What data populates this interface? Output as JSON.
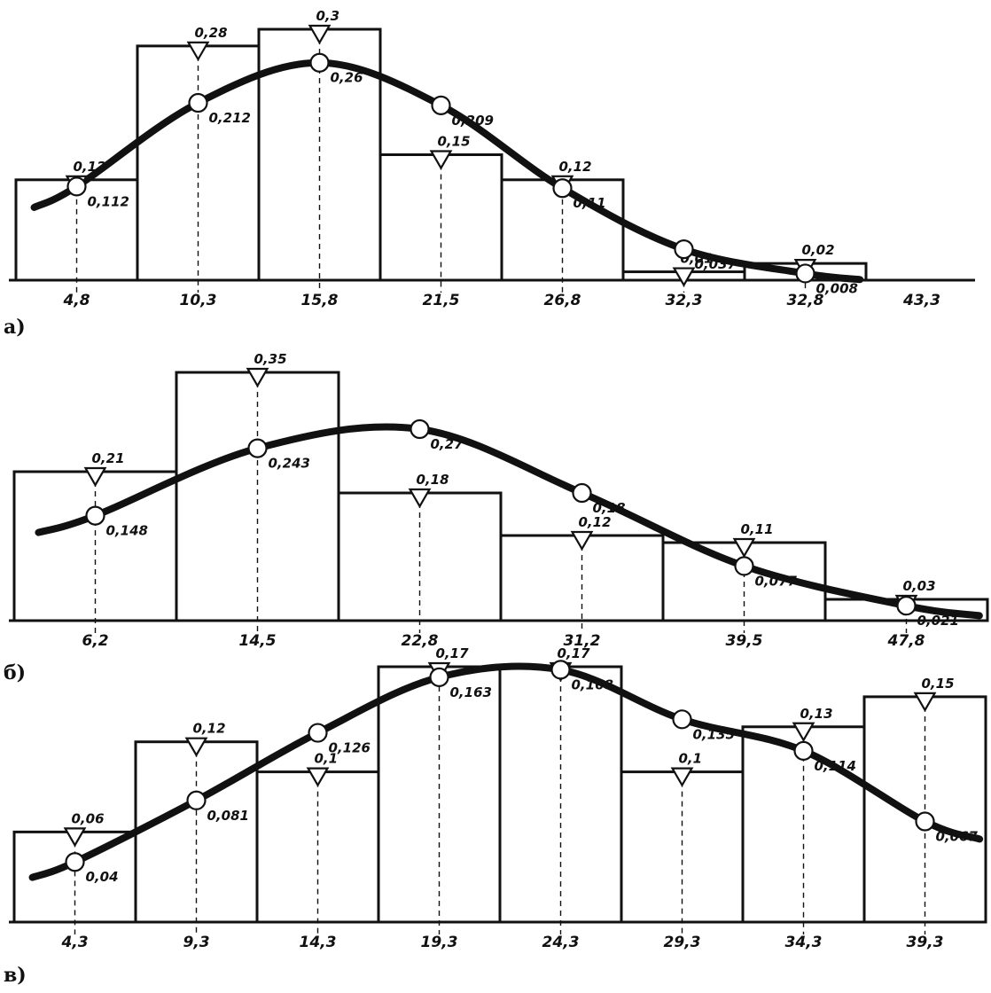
{
  "chart_data": [
    {
      "type": "bar",
      "panel_label": "a)",
      "categories": [
        "4,8",
        "10,3",
        "15,8",
        "21,5",
        "26,8",
        "32,3",
        "32,8",
        "43,3"
      ],
      "series": [
        {
          "values": [
            0.12,
            0.28,
            0.3,
            0.15,
            0.12,
            0.01,
            0.02,
            null
          ],
          "labels": [
            "0,12",
            "0,28",
            "0,3",
            "0,15",
            "0,12",
            "0,01",
            "0,02",
            ""
          ]
        },
        {
          "values": [
            0.112,
            0.212,
            0.26,
            0.209,
            0.11,
            0.037,
            0.008,
            null
          ],
          "labels": [
            "0,112",
            "0,212",
            "0,26",
            "0,209",
            "0,11",
            "0,037",
            "0,008",
            ""
          ]
        }
      ],
      "ylim": [
        0,
        0.3
      ],
      "grid": false
    },
    {
      "type": "bar",
      "panel_label": "б)",
      "categories": [
        "6,2",
        "14,5",
        "22,8",
        "31,2",
        "39,5",
        "47,8"
      ],
      "series": [
        {
          "values": [
            0.21,
            0.35,
            0.18,
            0.12,
            0.11,
            0.03
          ],
          "labels": [
            "0,21",
            "0,35",
            "0,18",
            "0,12",
            "0,11",
            "0,03"
          ]
        },
        {
          "values": [
            0.148,
            0.243,
            0.27,
            0.18,
            0.077,
            0.021
          ],
          "labels": [
            "0,148",
            "0,243",
            "0,27",
            "0,18",
            "0,077",
            "0,021"
          ]
        }
      ],
      "ylim": [
        0,
        0.35
      ],
      "grid": false
    },
    {
      "type": "bar",
      "panel_label": "в)",
      "categories": [
        "4,3",
        "9,3",
        "14,3",
        "19,3",
        "24,3",
        "29,3",
        "34,3",
        "39,3"
      ],
      "series": [
        {
          "values": [
            0.06,
            0.12,
            0.1,
            0.17,
            0.17,
            0.1,
            0.13,
            0.15
          ],
          "labels": [
            "0,06",
            "0,12",
            "0,1",
            "0,17",
            "0,17",
            "0,1",
            "0,13",
            "0,15"
          ]
        },
        {
          "values": [
            0.04,
            0.081,
            0.126,
            0.163,
            0.168,
            0.135,
            0.114,
            0.067
          ],
          "labels": [
            "0,04",
            "0,081",
            "0,126",
            "0,163",
            "0,168",
            "0,135",
            "0,114",
            "0,067"
          ]
        }
      ],
      "ylim": [
        0,
        0.17
      ],
      "grid": false
    }
  ]
}
